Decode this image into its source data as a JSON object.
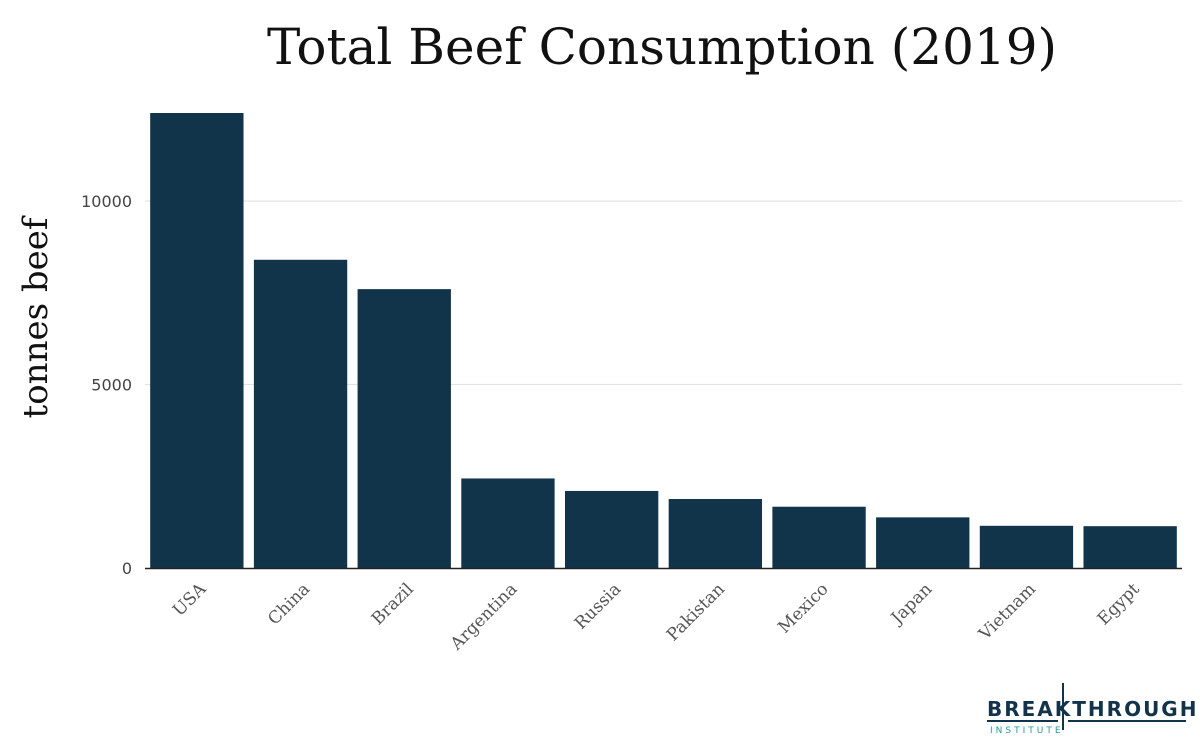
{
  "chart_data": {
    "type": "bar",
    "title": "Total Beef Consumption (2019)",
    "xlabel": "",
    "ylabel": "tonnes beef",
    "categories": [
      "USA",
      "China",
      "Brazil",
      "Argentina",
      "Russia",
      "Pakistan",
      "Mexico",
      "Japan",
      "Vietnam",
      "Egypt"
    ],
    "values": [
      12400,
      8400,
      7600,
      2440,
      2100,
      1880,
      1670,
      1380,
      1150,
      1140
    ],
    "ylim": [
      0,
      12400
    ],
    "yticks": [
      0,
      5000,
      10000
    ],
    "ytick_labels": [
      "0",
      "5000",
      "10000"
    ],
    "grid": true,
    "legend": "none",
    "bar_color": "#12344a"
  },
  "logo": {
    "name": "BREAKTHROUGH",
    "subtitle": "INSTITUTE",
    "color": "#12344a",
    "accent": "#2a9a9a"
  }
}
